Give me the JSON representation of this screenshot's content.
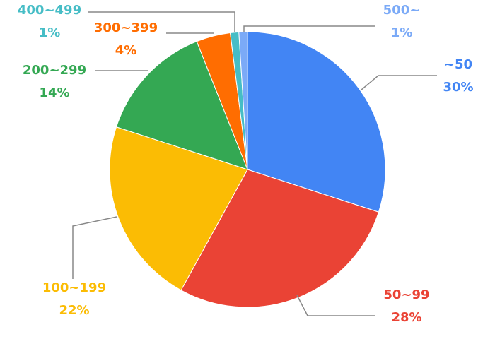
{
  "chart_data": {
    "type": "pie",
    "categories": [
      "~50",
      "50~99",
      "100~199",
      "200~299",
      "300~399",
      "400~499",
      "500~"
    ],
    "values": [
      30,
      28,
      22,
      14,
      4,
      1,
      1
    ],
    "value_labels": [
      "30%",
      "28%",
      "22%",
      "14%",
      "4%",
      "1%",
      "1%"
    ],
    "colors": [
      "#4285f4",
      "#ea4335",
      "#fbbc04",
      "#34a853",
      "#ff6d01",
      "#46bdc6",
      "#7baaf7"
    ]
  }
}
